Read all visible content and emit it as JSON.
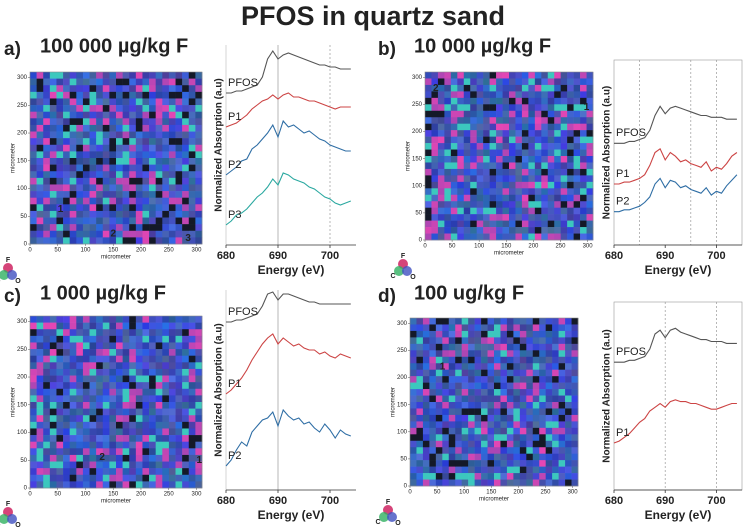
{
  "title": "PFOS in quartz sand",
  "map_legend": [
    "F",
    "C",
    "O"
  ],
  "panels": [
    {
      "label": "a)",
      "heading": "100 000 µg/kg F",
      "map": {
        "xlabel": "micrometer",
        "ylabel": "micrometer",
        "xlim": [
          0,
          310
        ],
        "ylim": [
          0,
          310
        ],
        "xticks": [
          0,
          50,
          100,
          150,
          200,
          250,
          300
        ],
        "yticks": [
          0,
          50,
          100,
          150,
          200,
          250,
          300
        ],
        "points": [
          {
            "label": "1",
            "x": 55,
            "y": 62
          },
          {
            "label": "2",
            "x": 150,
            "y": 18
          },
          {
            "label": "3",
            "x": 285,
            "y": 10
          }
        ]
      }
    },
    {
      "label": "b)",
      "heading": "10 000 µg/kg F",
      "map": {
        "xlabel": "micrometer",
        "ylabel": "micrometer",
        "xlim": [
          0,
          310
        ],
        "ylim": [
          0,
          310
        ],
        "xticks": [
          0,
          50,
          100,
          150,
          200,
          250,
          300
        ],
        "yticks": [
          0,
          50,
          100,
          150,
          200,
          250,
          300
        ],
        "points": [
          {
            "label": "2",
            "x": 20,
            "y": 280
          },
          {
            "label": "1",
            "x": 298,
            "y": 245
          }
        ]
      }
    },
    {
      "label": "c)",
      "heading": "1 000 µg/kg F",
      "map": {
        "xlabel": "micrometer",
        "ylabel": "micrometer",
        "xlim": [
          0,
          310
        ],
        "ylim": [
          0,
          310
        ],
        "xticks": [
          0,
          50,
          100,
          150,
          200,
          250,
          300
        ],
        "yticks": [
          0,
          50,
          100,
          150,
          200,
          250,
          300
        ],
        "points": [
          {
            "label": "2",
            "x": 130,
            "y": 55
          },
          {
            "label": "1",
            "x": 305,
            "y": 50
          }
        ]
      }
    },
    {
      "label": "d)",
      "heading": "100 ug/kg F",
      "map": {
        "xlabel": "micrometer",
        "ylabel": "micrometer",
        "xlim": [
          0,
          310
        ],
        "ylim": [
          0,
          310
        ],
        "xticks": [
          0,
          50,
          100,
          150,
          200,
          250,
          300
        ],
        "yticks": [
          0,
          50,
          100,
          150,
          200,
          250,
          300
        ],
        "points": [
          {
            "label": "1",
            "x": 60,
            "y": 220
          }
        ]
      }
    }
  ],
  "chart_data": [
    {
      "type": "line",
      "xlabel": "Energy (eV)",
      "ylabel": "Normalized Absorption (a.u)",
      "x": [
        680,
        681,
        682,
        683,
        684,
        685,
        686,
        687,
        688,
        689,
        690,
        691,
        692,
        693,
        694,
        695,
        696,
        697,
        698,
        699,
        700,
        701,
        702,
        703,
        704
      ],
      "xlim": [
        680,
        705
      ],
      "ylim": [
        0,
        10
      ],
      "xticks": [
        680,
        690,
        700
      ],
      "vlines": [
        690,
        700
      ],
      "series": [
        {
          "name": "PFOS",
          "color": "#555555",
          "values": [
            7.6,
            7.6,
            7.7,
            7.7,
            7.8,
            7.9,
            8.0,
            8.4,
            9.3,
            9.7,
            9.3,
            9.5,
            9.6,
            9.5,
            9.4,
            9.3,
            9.2,
            9.1,
            9.0,
            9.0,
            8.9,
            8.9,
            8.8,
            8.8,
            8.8
          ]
        },
        {
          "name": "P1",
          "color": "#cc4444",
          "values": [
            5.9,
            6.0,
            6.1,
            6.3,
            6.5,
            6.8,
            7.0,
            7.2,
            7.3,
            7.5,
            7.3,
            7.5,
            7.6,
            7.4,
            7.4,
            7.3,
            7.2,
            7.2,
            7.1,
            7.0,
            6.9,
            6.8,
            6.9,
            6.9,
            6.9
          ]
        },
        {
          "name": "P2",
          "color": "#2f6ea5",
          "values": [
            3.5,
            3.7,
            3.9,
            4.2,
            4.3,
            4.8,
            5.0,
            5.3,
            5.6,
            6.0,
            5.4,
            6.2,
            5.9,
            6.0,
            5.8,
            5.6,
            5.7,
            5.5,
            5.3,
            5.2,
            5.0,
            4.9,
            4.8,
            4.7,
            4.7
          ]
        },
        {
          "name": "P3",
          "color": "#2aa8a0",
          "values": [
            1.0,
            1.2,
            1.5,
            1.6,
            1.8,
            2.1,
            2.4,
            2.6,
            2.9,
            3.3,
            3.0,
            3.6,
            3.5,
            3.3,
            3.2,
            3.1,
            2.9,
            2.8,
            2.6,
            2.4,
            2.3,
            2.1,
            2.0,
            2.1,
            2.2
          ]
        }
      ]
    },
    {
      "type": "line",
      "xlabel": "Energy (eV)",
      "ylabel": "Normalized Absorption (a.u)",
      "x": [
        680,
        681,
        682,
        683,
        684,
        685,
        686,
        687,
        688,
        689,
        690,
        691,
        692,
        693,
        694,
        695,
        696,
        697,
        698,
        699,
        700,
        701,
        702,
        703,
        704
      ],
      "xlim": [
        680,
        705
      ],
      "ylim": [
        0,
        10
      ],
      "xticks": [
        680,
        690,
        700
      ],
      "vlines": [
        685,
        695,
        700
      ],
      "series": [
        {
          "name": "PFOS",
          "color": "#555555",
          "values": [
            5.5,
            5.5,
            5.5,
            5.6,
            5.6,
            5.7,
            5.8,
            6.2,
            7.0,
            7.5,
            7.1,
            7.4,
            7.5,
            7.4,
            7.3,
            7.2,
            7.1,
            7.0,
            7.0,
            6.9,
            6.9,
            6.9,
            6.8,
            6.8,
            6.8
          ]
        },
        {
          "name": "P1",
          "color": "#cc4444",
          "values": [
            3.3,
            3.3,
            3.4,
            3.4,
            3.5,
            3.6,
            3.8,
            4.3,
            5.0,
            5.2,
            4.6,
            5.0,
            4.8,
            4.5,
            4.6,
            4.4,
            4.3,
            4.2,
            4.5,
            4.0,
            4.2,
            4.1,
            4.4,
            4.8,
            5.0
          ]
        },
        {
          "name": "P2",
          "color": "#2f6ea5",
          "values": [
            1.8,
            1.8,
            1.9,
            1.9,
            2.0,
            2.1,
            2.3,
            2.6,
            3.3,
            3.6,
            3.1,
            3.5,
            3.4,
            3.1,
            3.2,
            3.0,
            2.9,
            2.8,
            3.1,
            2.7,
            2.9,
            2.8,
            3.2,
            3.5,
            3.8
          ]
        }
      ]
    },
    {
      "type": "line",
      "xlabel": "Energy (eV)",
      "ylabel": "Normalized Absorption (a.u)",
      "x": [
        680,
        681,
        682,
        683,
        684,
        685,
        686,
        687,
        688,
        689,
        690,
        691,
        692,
        693,
        694,
        695,
        696,
        697,
        698,
        699,
        700,
        701,
        702,
        703,
        704
      ],
      "xlim": [
        680,
        705
      ],
      "ylim": [
        0,
        10
      ],
      "xticks": [
        680,
        690,
        700
      ],
      "vlines": [
        690
      ],
      "series": [
        {
          "name": "PFOS",
          "color": "#555555",
          "values": [
            8.4,
            8.4,
            8.5,
            8.5,
            8.6,
            8.7,
            8.8,
            9.2,
            9.8,
            9.9,
            9.5,
            9.8,
            9.8,
            9.7,
            9.6,
            9.5,
            9.4,
            9.4,
            9.3,
            9.3,
            9.3,
            9.3,
            9.3,
            9.3,
            9.3
          ]
        },
        {
          "name": "P1",
          "color": "#cc4444",
          "values": [
            4.8,
            5.0,
            5.3,
            5.6,
            6.0,
            6.5,
            6.9,
            7.3,
            7.6,
            7.8,
            7.3,
            7.6,
            7.4,
            7.2,
            7.3,
            7.1,
            7.0,
            7.0,
            6.8,
            6.9,
            6.7,
            6.6,
            6.8,
            6.7,
            6.6
          ]
        },
        {
          "name": "P2",
          "color": "#2f6ea5",
          "values": [
            1.2,
            1.5,
            2.0,
            2.4,
            2.2,
            2.9,
            3.2,
            3.5,
            3.6,
            3.9,
            3.2,
            4.0,
            3.7,
            3.5,
            3.6,
            3.3,
            3.4,
            3.1,
            2.9,
            3.3,
            3.0,
            2.6,
            3.0,
            2.8,
            2.7
          ]
        }
      ]
    },
    {
      "type": "line",
      "xlabel": "Energy (eV)",
      "ylabel": "Normalized Absorption (a.u)",
      "x": [
        680,
        681,
        682,
        683,
        684,
        685,
        686,
        687,
        688,
        689,
        690,
        691,
        692,
        693,
        694,
        695,
        696,
        697,
        698,
        699,
        700,
        701,
        702,
        703,
        704
      ],
      "xlim": [
        680,
        705
      ],
      "ylim": [
        0,
        10
      ],
      "xticks": [
        680,
        690,
        700
      ],
      "vlines": [
        690,
        700
      ],
      "series": [
        {
          "name": "PFOS",
          "color": "#555555",
          "values": [
            6.8,
            6.8,
            6.8,
            6.9,
            6.9,
            7.0,
            7.1,
            7.5,
            8.3,
            8.5,
            8.1,
            8.5,
            8.6,
            8.4,
            8.3,
            8.2,
            8.1,
            8.0,
            8.0,
            7.9,
            7.9,
            7.9,
            7.8,
            7.8,
            7.8
          ]
        },
        {
          "name": "P1",
          "color": "#cc4444",
          "values": [
            2.5,
            2.6,
            2.8,
            3.0,
            3.3,
            3.6,
            3.8,
            4.2,
            4.4,
            4.6,
            4.4,
            4.7,
            4.8,
            4.7,
            4.7,
            4.6,
            4.6,
            4.5,
            4.4,
            4.3,
            4.3,
            4.4,
            4.5,
            4.6,
            4.6
          ]
        }
      ]
    }
  ]
}
